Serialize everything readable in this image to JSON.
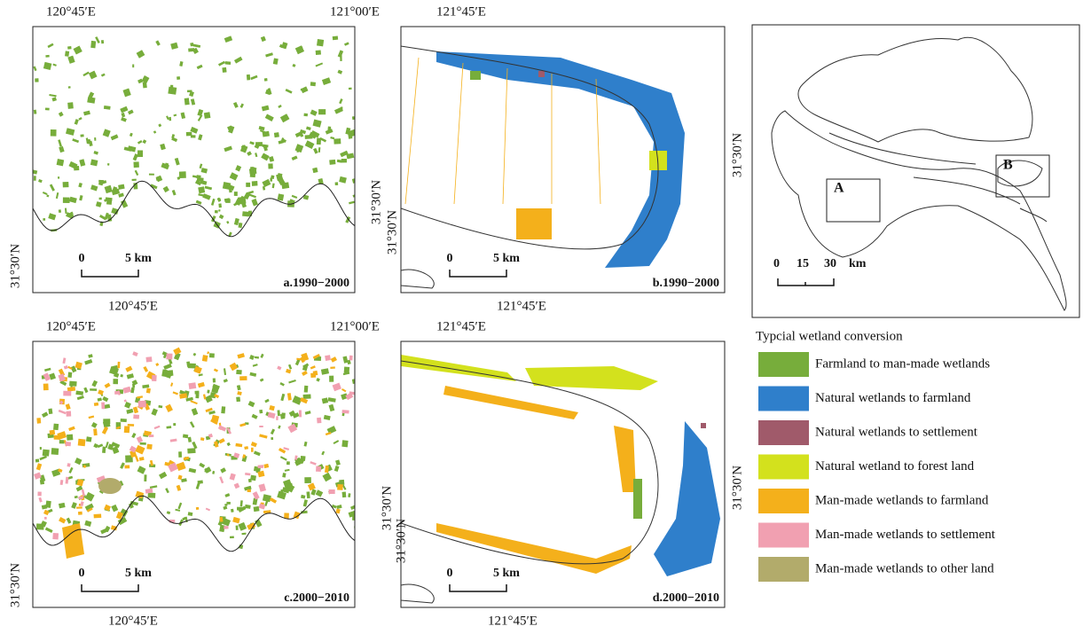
{
  "panels": [
    {
      "top_labels": [
        "120°45′E",
        "121°00′E"
      ],
      "bottom_label": "120°45′E",
      "left_labels": [
        "31°30′N"
      ],
      "right_labels": [],
      "scale": {
        "zero": "0",
        "end": "5 km"
      },
      "caption": "a.1990−2000"
    },
    {
      "top_labels": [
        "121°45′E"
      ],
      "bottom_label": "121°45′E",
      "left_labels": [
        "31°30′N",
        "31°30′N"
      ],
      "right_labels": [
        "31°30′N"
      ],
      "scale": {
        "zero": "0",
        "end": "5 km"
      },
      "caption": "b.1990−2000"
    },
    {
      "top_labels": [
        "120°45′E",
        "121°00′E"
      ],
      "bottom_label": "120°45′E",
      "left_labels": [
        "31°30′N"
      ],
      "right_labels": [],
      "scale": {
        "zero": "0",
        "end": "5 km"
      },
      "caption": "c.2000−2010"
    },
    {
      "top_labels": [
        "121°45′E"
      ],
      "bottom_label": "121°45′E",
      "left_labels": [
        "31°30′N",
        "31°30′N"
      ],
      "right_labels": [
        "31°30′N"
      ],
      "scale": {
        "zero": "0",
        "end": "5 km"
      },
      "caption": "d.2000−2010"
    }
  ],
  "overview": {
    "box_labels": [
      "A",
      "B"
    ],
    "scale": [
      "0",
      "15",
      "30",
      "km"
    ]
  },
  "legend": {
    "title": "Typcial wetland conversion",
    "items": [
      {
        "label": "Farmland to man-made wetlands",
        "color": "#77ad3b"
      },
      {
        "label": "Natural wetlands to farmland",
        "color": "#2f7fcb"
      },
      {
        "label": "Natural wetlands to settlement",
        "color": "#a05a6a"
      },
      {
        "label": "Natural wetland to forest land",
        "color": "#d3e11d"
      },
      {
        "label": "Man-made wetlands to farmland",
        "color": "#f4b01b"
      },
      {
        "label": "Man-made wetlands to settlement",
        "color": "#f1a0b1"
      },
      {
        "label": "Man-made wetlands to other land",
        "color": "#b2ab6b"
      }
    ]
  }
}
